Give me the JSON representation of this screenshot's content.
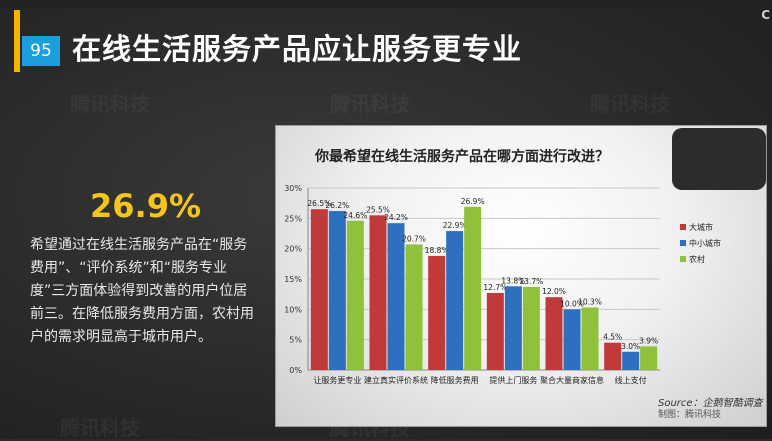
{
  "slide": {
    "page_number": "95",
    "title": "在线生活服务产品应让服务更专业",
    "corner_glyph": "C",
    "watermark": "腾讯科技"
  },
  "summary": {
    "stat": "26.9%",
    "text": "希望通过在线生活服务产品在“服务费用”、“评价系统”和“服务专业度”三方面体验得到改善的用户位居前三。在降低服务费用方面，农村用户的需求明显高于城市用户。"
  },
  "colors": {
    "accent": "#f5b400",
    "badge": "#1a9fdc",
    "stat": "#f5c518",
    "series": [
      "#c0393b",
      "#2e6fc0",
      "#8fc23a"
    ]
  },
  "chart_data": {
    "type": "bar",
    "title": "你最希望在线生活服务产品在哪方面进行改进？",
    "categories": [
      "让服务更专业",
      "建立真实评价系统",
      "降低服务费用",
      "提供上门服务",
      "聚合大量商家信息",
      "线上支付"
    ],
    "series": [
      {
        "name": "大城市",
        "values": [
          26.5,
          25.5,
          18.8,
          12.7,
          12.0,
          4.5
        ]
      },
      {
        "name": "中小城市",
        "values": [
          26.2,
          24.2,
          22.9,
          13.8,
          10.0,
          3.0
        ]
      },
      {
        "name": "农村",
        "values": [
          24.6,
          20.7,
          26.9,
          13.7,
          10.3,
          3.9
        ]
      }
    ],
    "ylim": [
      0,
      30
    ],
    "yticks": [
      "0%",
      "5%",
      "10%",
      "15%",
      "20%",
      "25%",
      "30%"
    ],
    "value_suffix": "%",
    "grid": true,
    "legend_position": "right",
    "source": "Source：企鹅智酷调查",
    "credit": "制图：腾讯科技"
  }
}
